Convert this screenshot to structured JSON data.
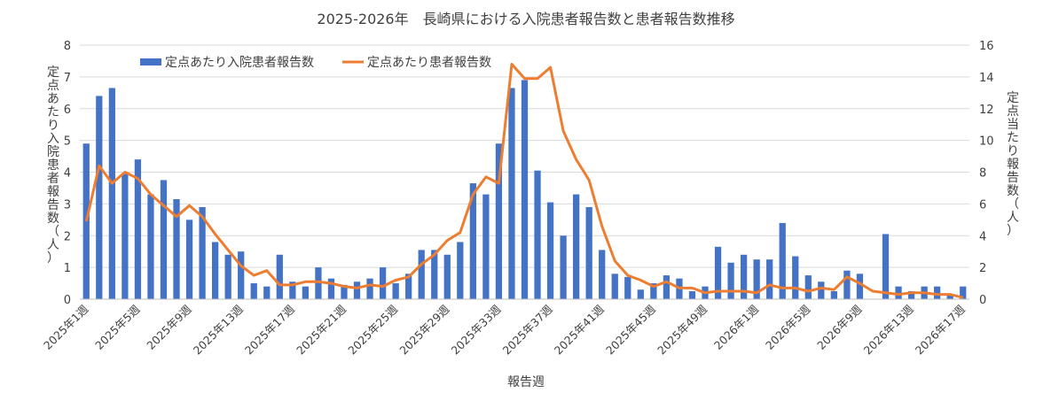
{
  "chart_data": {
    "type": "bar+line",
    "title": "2025-2026年　長崎県における入院患者報告数と患者報告数推移",
    "xlabel": "報告週",
    "ylabel_left": "定点あたり入院患者報告数（人）",
    "ylabel_right": "定点当たり報告数（人）",
    "ylim_left": [
      0,
      8
    ],
    "ylim_right": [
      0,
      16
    ],
    "yticks_left": [
      "0",
      "1",
      "2",
      "3",
      "4",
      "5",
      "6",
      "7",
      "8"
    ],
    "yticks_right": [
      "0",
      "2",
      "4",
      "6",
      "8",
      "10",
      "12",
      "14",
      "16"
    ],
    "grid": true,
    "legend_position": "top-left",
    "x_tick_labels": [
      "2025年1週",
      "2025年5週",
      "2025年9週",
      "2025年13週",
      "2025年17週",
      "2025年21週",
      "2025年25週",
      "2025年29週",
      "2025年33週",
      "2025年37週",
      "2025年41週",
      "2025年45週",
      "2025年49週",
      "2026年1週",
      "2026年5週",
      "2026年9週",
      "2026年13週",
      "2026年17週"
    ],
    "x_tick_every": 4,
    "weeks_count": 69,
    "series": [
      {
        "name": "定点あたり入院患者報告数",
        "type": "bar",
        "axis": "left",
        "color": "#4472c4",
        "values": [
          4.9,
          6.4,
          6.65,
          3.95,
          4.4,
          3.3,
          3.75,
          3.15,
          2.5,
          2.9,
          1.8,
          1.4,
          1.5,
          0.5,
          0.4,
          1.4,
          0.55,
          0.4,
          1.0,
          0.65,
          0.45,
          0.55,
          0.65,
          1.0,
          0.5,
          0.8,
          1.55,
          1.55,
          1.4,
          1.8,
          3.65,
          3.3,
          4.9,
          6.65,
          6.9,
          4.05,
          3.05,
          2.0,
          3.3,
          2.9,
          1.55,
          0.8,
          0.7,
          0.3,
          0.5,
          0.75,
          0.65,
          0.25,
          0.4,
          1.65,
          1.15,
          1.4,
          1.25,
          1.25,
          2.4,
          1.35,
          0.75,
          0.55,
          0.25,
          0.9,
          0.8,
          null,
          2.05,
          0.4,
          0.25,
          0.4,
          0.4,
          0.15,
          0.4
        ]
      },
      {
        "name": "定点あたり患者報告数",
        "type": "line",
        "axis": "right",
        "color": "#ed7d31",
        "values": [
          4.9,
          8.4,
          7.3,
          8.0,
          7.6,
          6.6,
          5.9,
          5.2,
          5.9,
          5.2,
          4.1,
          3.1,
          2.1,
          1.5,
          1.8,
          0.9,
          0.9,
          1.1,
          1.1,
          1.0,
          0.8,
          0.7,
          0.9,
          0.8,
          1.2,
          1.4,
          2.2,
          2.8,
          3.7,
          4.2,
          6.6,
          7.7,
          7.3,
          14.8,
          13.9,
          13.9,
          14.6,
          10.6,
          8.8,
          7.5,
          4.6,
          2.4,
          1.5,
          1.2,
          0.8,
          1.1,
          0.7,
          0.7,
          0.4,
          0.5,
          0.5,
          0.5,
          0.4,
          0.9,
          0.7,
          0.7,
          0.5,
          0.7,
          0.6,
          1.4,
          1.0,
          0.5,
          0.4,
          0.3,
          0.4,
          0.4,
          0.3,
          0.3,
          0.1
        ]
      }
    ]
  }
}
